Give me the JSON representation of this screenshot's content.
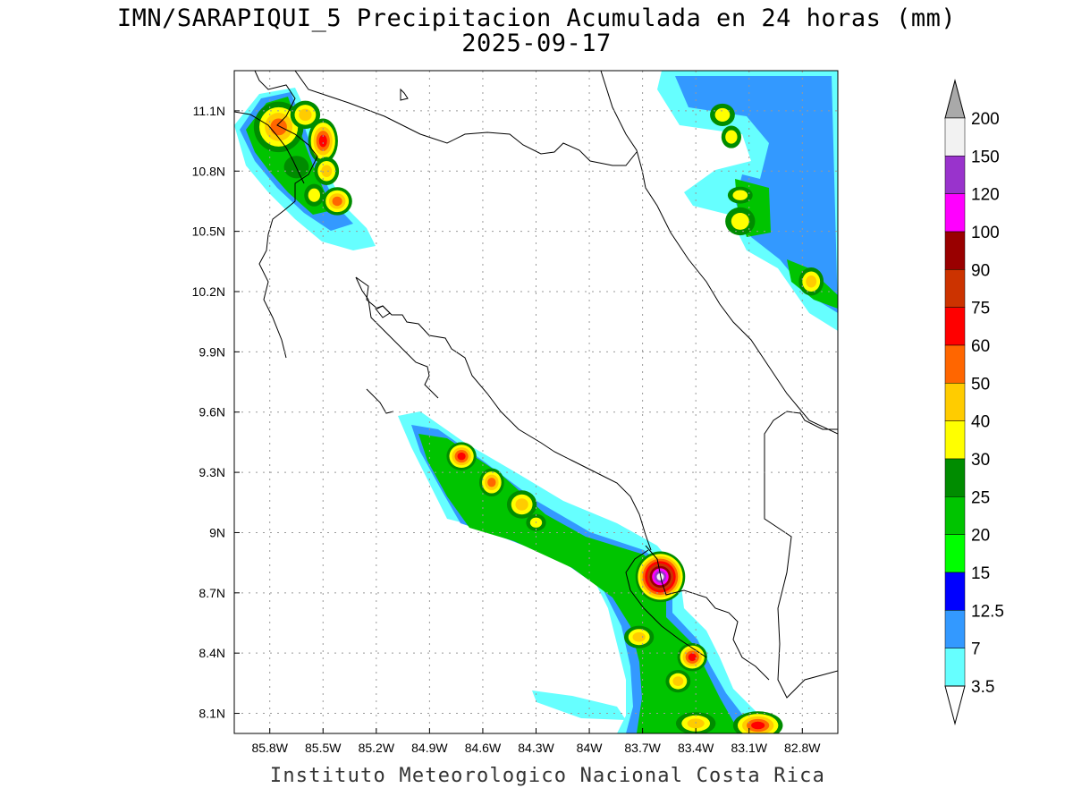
{
  "title": {
    "line1": "IMN/SARAPIQUI_5 Precipitacion Acumulada en 24 horas (mm)",
    "line2": "2025-09-17"
  },
  "footer": "Instituto Meteorologico Nacional Costa Rica",
  "map": {
    "lon_range": [
      -86.0,
      -82.6
    ],
    "lat_range": [
      8.0,
      11.3
    ],
    "lon_ticks": [
      {
        "value": -85.8,
        "label": "85.8W"
      },
      {
        "value": -85.5,
        "label": "85.5W"
      },
      {
        "value": -85.2,
        "label": "85.2W"
      },
      {
        "value": -84.9,
        "label": "84.9W"
      },
      {
        "value": -84.6,
        "label": "84.6W"
      },
      {
        "value": -84.3,
        "label": "84.3W"
      },
      {
        "value": -84.0,
        "label": "84W"
      },
      {
        "value": -83.7,
        "label": "83.7W"
      },
      {
        "value": -83.4,
        "label": "83.4W"
      },
      {
        "value": -83.1,
        "label": "83.1W"
      },
      {
        "value": -82.8,
        "label": "82.8W"
      }
    ],
    "lat_ticks": [
      {
        "value": 11.1,
        "label": "11.1N"
      },
      {
        "value": 10.8,
        "label": "10.8N"
      },
      {
        "value": 10.5,
        "label": "10.5N"
      },
      {
        "value": 10.2,
        "label": "10.2N"
      },
      {
        "value": 9.9,
        "label": "9.9N"
      },
      {
        "value": 9.6,
        "label": "9.6N"
      },
      {
        "value": 9.3,
        "label": "9.3N"
      },
      {
        "value": 9.0,
        "label": "9N"
      },
      {
        "value": 8.7,
        "label": "8.7N"
      },
      {
        "value": 8.4,
        "label": "8.4N"
      },
      {
        "value": 8.1,
        "label": "8.1N"
      }
    ],
    "gridlines": true,
    "precip_blobs": [
      {
        "lon": -85.75,
        "lat": 11.02,
        "rlon": 0.1,
        "rlat": 0.09,
        "level": 50
      },
      {
        "lon": -85.6,
        "lat": 11.08,
        "rlon": 0.06,
        "rlat": 0.05,
        "level": 40
      },
      {
        "lon": -85.5,
        "lat": 10.95,
        "rlon": 0.06,
        "rlat": 0.08,
        "level": 60
      },
      {
        "lon": -85.48,
        "lat": 10.8,
        "rlon": 0.05,
        "rlat": 0.05,
        "level": 40
      },
      {
        "lon": -85.65,
        "lat": 10.82,
        "rlon": 0.05,
        "rlat": 0.04,
        "level": 25
      },
      {
        "lon": -85.42,
        "lat": 10.65,
        "rlon": 0.06,
        "rlat": 0.05,
        "level": 50
      },
      {
        "lon": -85.55,
        "lat": 10.68,
        "rlon": 0.04,
        "rlat": 0.04,
        "level": 30
      },
      {
        "lon": -83.15,
        "lat": 10.55,
        "rlon": 0.06,
        "rlat": 0.05,
        "level": 30
      },
      {
        "lon": -82.75,
        "lat": 10.25,
        "rlon": 0.05,
        "rlat": 0.05,
        "level": 40
      },
      {
        "lon": -83.15,
        "lat": 10.68,
        "rlon": 0.05,
        "rlat": 0.03,
        "level": 30
      },
      {
        "lon": -83.25,
        "lat": 11.08,
        "rlon": 0.05,
        "rlat": 0.04,
        "level": 30
      },
      {
        "lon": -83.2,
        "lat": 10.97,
        "rlon": 0.04,
        "rlat": 0.04,
        "level": 30
      },
      {
        "lon": -84.72,
        "lat": 9.38,
        "rlon": 0.06,
        "rlat": 0.05,
        "level": 60
      },
      {
        "lon": -84.55,
        "lat": 9.25,
        "rlon": 0.05,
        "rlat": 0.05,
        "level": 50
      },
      {
        "lon": -84.38,
        "lat": 9.14,
        "rlon": 0.06,
        "rlat": 0.05,
        "level": 40
      },
      {
        "lon": -84.3,
        "lat": 9.05,
        "rlon": 0.04,
        "rlat": 0.03,
        "level": 30
      },
      {
        "lon": -83.6,
        "lat": 8.78,
        "rlon": 0.1,
        "rlat": 0.09,
        "level": 150
      },
      {
        "lon": -83.72,
        "lat": 8.48,
        "rlon": 0.06,
        "rlat": 0.04,
        "level": 40
      },
      {
        "lon": -83.42,
        "lat": 8.38,
        "rlon": 0.06,
        "rlat": 0.05,
        "level": 60
      },
      {
        "lon": -83.5,
        "lat": 8.26,
        "rlon": 0.05,
        "rlat": 0.04,
        "level": 40
      },
      {
        "lon": -83.05,
        "lat": 8.04,
        "rlon": 0.1,
        "rlat": 0.05,
        "level": 60
      },
      {
        "lon": -83.4,
        "lat": 8.05,
        "rlon": 0.08,
        "rlat": 0.04,
        "level": 40
      }
    ]
  },
  "legend": {
    "levels": [
      {
        "label": "200",
        "color": "#a9a9a9"
      },
      {
        "label": "150",
        "color": "#f2f2f2"
      },
      {
        "label": "120",
        "color": "#9933cc"
      },
      {
        "label": "100",
        "color": "#ff00ff"
      },
      {
        "label": "90",
        "color": "#990000"
      },
      {
        "label": "75",
        "color": "#cc3300"
      },
      {
        "label": "60",
        "color": "#ff0000"
      },
      {
        "label": "50",
        "color": "#ff6600"
      },
      {
        "label": "40",
        "color": "#ffcc00"
      },
      {
        "label": "30",
        "color": "#ffff00"
      },
      {
        "label": "25",
        "color": "#008c00"
      },
      {
        "label": "20",
        "color": "#00c400"
      },
      {
        "label": "15",
        "color": "#00ff00"
      },
      {
        "label": "12.5",
        "color": "#0000ff"
      },
      {
        "label": "7",
        "color": "#3399ff"
      },
      {
        "label": "3.5",
        "color": "#66ffff"
      }
    ],
    "top_arrow_color": "#a9a9a9",
    "bottom_arrow_color": "#ffffff"
  }
}
